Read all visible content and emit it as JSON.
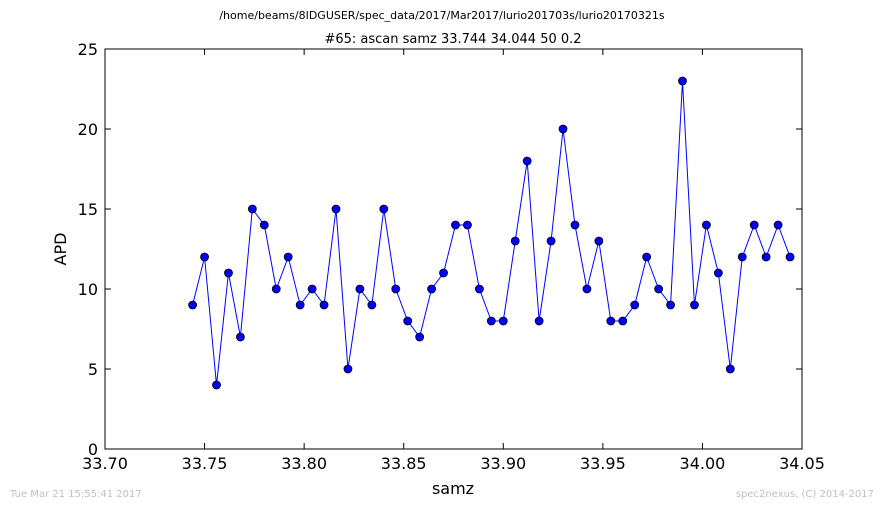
{
  "suptitle": "/home/beams/8IDGUSER/spec_data/2017/Mar2017/lurio201703s/lurio20170321s",
  "footer": {
    "timestamp": "Tue Mar 21 15:55:41 2017",
    "credit": "spec2nexus, (C) 2014-2017"
  },
  "colors": {
    "series": "#0000ff",
    "marker_fill": "#0000ff",
    "axes": "#000000"
  },
  "chart_data": {
    "type": "line",
    "title": "#65: ascan  samz 33.744 34.044  50 0.2",
    "xlabel": "samz",
    "ylabel": "APD",
    "xlim": [
      33.7,
      34.05
    ],
    "ylim": [
      0,
      25
    ],
    "xticks": [
      "33.70",
      "33.75",
      "33.80",
      "33.85",
      "33.90",
      "33.95",
      "34.00",
      "34.05"
    ],
    "yticks": [
      "0",
      "5",
      "10",
      "15",
      "20",
      "25"
    ],
    "grid": false,
    "legend": "none",
    "x_start": 33.744,
    "x_step": 0.006,
    "y": [
      9,
      12,
      4,
      11,
      7,
      15,
      14,
      10,
      12,
      9,
      10,
      9,
      15,
      5,
      10,
      9,
      15,
      10,
      8,
      7,
      10,
      11,
      14,
      14,
      10,
      8,
      8,
      13,
      18,
      8,
      13,
      20,
      14,
      10,
      13,
      8,
      8,
      9,
      12,
      10,
      9,
      23,
      9,
      14,
      11,
      5,
      12,
      14,
      12,
      14,
      12
    ]
  }
}
